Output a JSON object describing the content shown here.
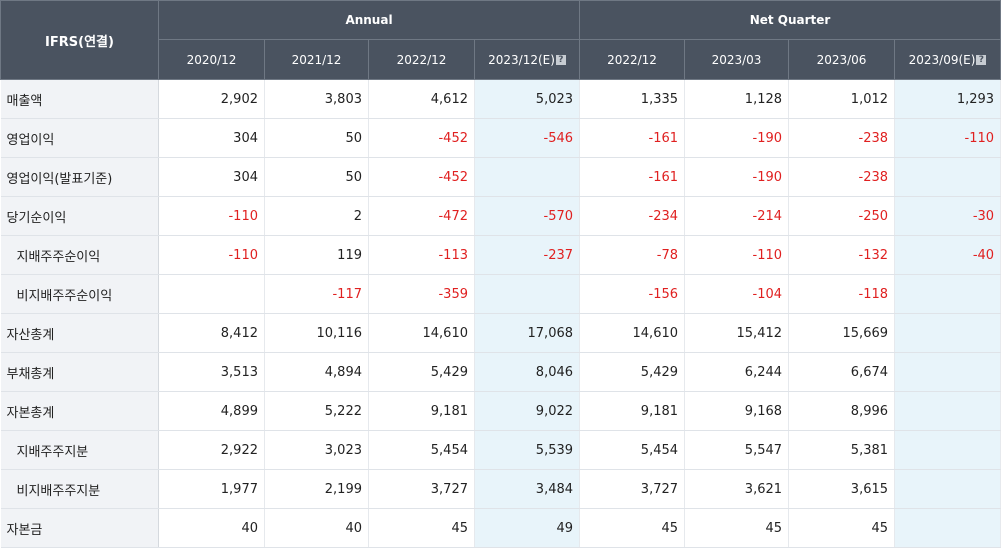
{
  "header": {
    "corner_label": "IFRS(연결)",
    "groups": [
      {
        "label": "Annual"
      },
      {
        "label": "Net Quarter"
      }
    ],
    "periods": [
      {
        "label": "2020/12",
        "estimate": false
      },
      {
        "label": "2021/12",
        "estimate": false
      },
      {
        "label": "2022/12",
        "estimate": false
      },
      {
        "label": "2023/12(E)",
        "estimate": true
      },
      {
        "label": "2022/12",
        "estimate": false
      },
      {
        "label": "2023/03",
        "estimate": false
      },
      {
        "label": "2023/06",
        "estimate": false
      },
      {
        "label": "2023/09(E)",
        "estimate": true
      }
    ],
    "estimate_icon": "help-icon"
  },
  "rows": [
    {
      "label": "매출액",
      "sub": false,
      "values": [
        "2,902",
        "3,803",
        "4,612",
        "5,023",
        "1,335",
        "1,128",
        "1,012",
        "1,293"
      ]
    },
    {
      "label": "영업이익",
      "sub": false,
      "values": [
        "304",
        "50",
        "-452",
        "-546",
        "-161",
        "-190",
        "-238",
        "-110"
      ]
    },
    {
      "label": "영업이익(발표기준)",
      "sub": false,
      "values": [
        "304",
        "50",
        "-452",
        "",
        "-161",
        "-190",
        "-238",
        ""
      ]
    },
    {
      "label": "당기순이익",
      "sub": false,
      "values": [
        "-110",
        "2",
        "-472",
        "-570",
        "-234",
        "-214",
        "-250",
        "-30"
      ]
    },
    {
      "label": "지배주주순이익",
      "sub": true,
      "values": [
        "-110",
        "119",
        "-113",
        "-237",
        "-78",
        "-110",
        "-132",
        "-40"
      ]
    },
    {
      "label": "비지배주주순이익",
      "sub": true,
      "values": [
        "",
        "-117",
        "-359",
        "",
        "-156",
        "-104",
        "-118",
        ""
      ]
    },
    {
      "label": "자산총계",
      "sub": false,
      "values": [
        "8,412",
        "10,116",
        "14,610",
        "17,068",
        "14,610",
        "15,412",
        "15,669",
        ""
      ]
    },
    {
      "label": "부채총계",
      "sub": false,
      "values": [
        "3,513",
        "4,894",
        "5,429",
        "8,046",
        "5,429",
        "6,244",
        "6,674",
        ""
      ]
    },
    {
      "label": "자본총계",
      "sub": false,
      "values": [
        "4,899",
        "5,222",
        "9,181",
        "9,022",
        "9,181",
        "9,168",
        "8,996",
        ""
      ]
    },
    {
      "label": "지배주주지분",
      "sub": true,
      "values": [
        "2,922",
        "3,023",
        "5,454",
        "5,539",
        "5,454",
        "5,547",
        "5,381",
        ""
      ]
    },
    {
      "label": "비지배주주지분",
      "sub": true,
      "values": [
        "1,977",
        "2,199",
        "3,727",
        "3,484",
        "3,727",
        "3,621",
        "3,615",
        ""
      ]
    },
    {
      "label": "자본금",
      "sub": false,
      "values": [
        "40",
        "40",
        "45",
        "49",
        "45",
        "45",
        "45",
        ""
      ]
    }
  ],
  "colors": {
    "header_bg": "#4a5360",
    "negative": "#e02020",
    "estimate_bg": "#e8f4fa",
    "label_bg": "#f1f3f6"
  }
}
